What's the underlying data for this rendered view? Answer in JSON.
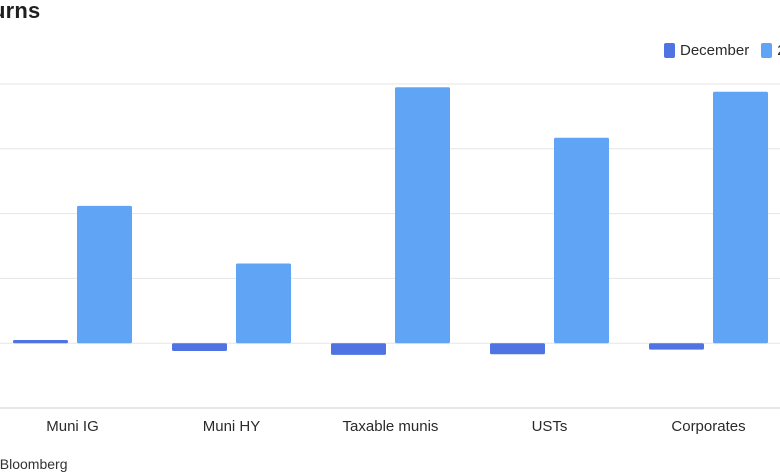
{
  "chart_data": {
    "type": "bar",
    "title": "urns",
    "categories": [
      "Muni IG",
      "Muni HY",
      "Taxable munis",
      "USTs",
      "Corporates"
    ],
    "series": [
      {
        "name": "December",
        "color": "#4f73e3",
        "values": [
          0.05,
          -0.12,
          -0.18,
          -0.17,
          -0.1
        ]
      },
      {
        "name": "2",
        "color": "#60a5f5",
        "values": [
          2.12,
          1.23,
          3.95,
          3.17,
          3.88
        ]
      }
    ],
    "ylim": [
      -1,
      4
    ],
    "grid": true,
    "legend_position": "top-right",
    "xlabel": "",
    "ylabel": ""
  },
  "source": ": Bloomberg"
}
